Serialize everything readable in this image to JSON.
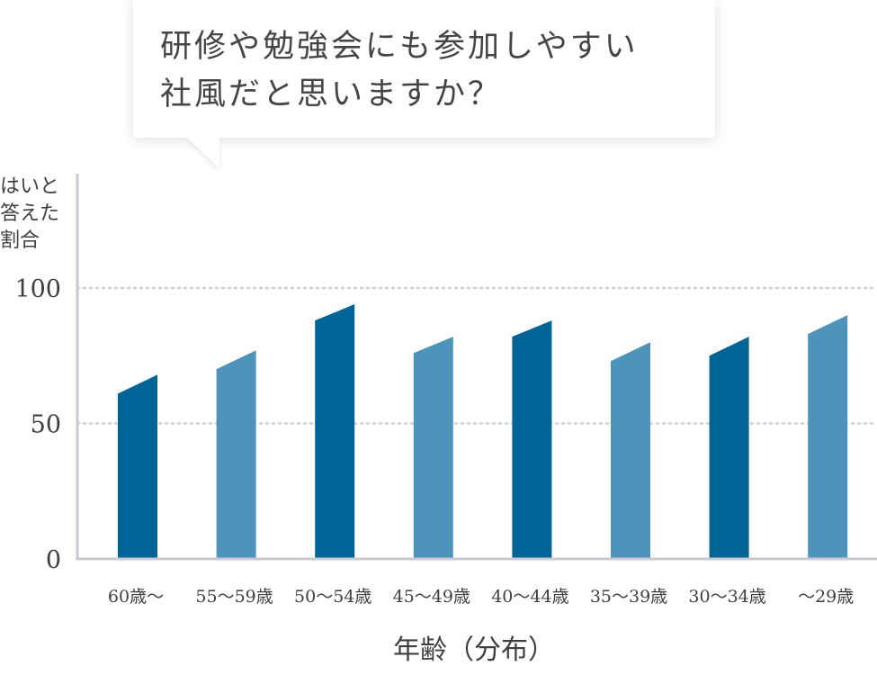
{
  "question": {
    "line1": "研修や勉強会にも参加しやすい",
    "line2": "社風だと思いますか？"
  },
  "colors": {
    "dark": "#006497",
    "light": "#4e93b9",
    "axis": "#c9c9d3",
    "grid": "#cfcfd6",
    "text": "#3f3f3f"
  },
  "chart_data": {
    "type": "bar",
    "ylabel_lines": [
      "はいと",
      "答えた",
      "割合"
    ],
    "xlabel": "年齢（分布）",
    "ylim": [
      0,
      100
    ],
    "yticks": [
      0,
      50,
      100
    ],
    "gridlines": [
      50,
      100
    ],
    "categories": [
      "60歳〜",
      "55〜59歳",
      "50〜54歳",
      "45〜49歳",
      "40〜44歳",
      "35〜39歳",
      "30〜34歳",
      "〜29歳"
    ],
    "values": [
      61,
      70,
      88,
      76,
      82,
      73,
      75,
      83
    ],
    "tops": [
      68,
      77,
      94,
      82,
      88,
      80,
      82,
      90
    ],
    "shade": [
      "dark",
      "light",
      "dark",
      "light",
      "dark",
      "light",
      "dark",
      "light"
    ]
  }
}
